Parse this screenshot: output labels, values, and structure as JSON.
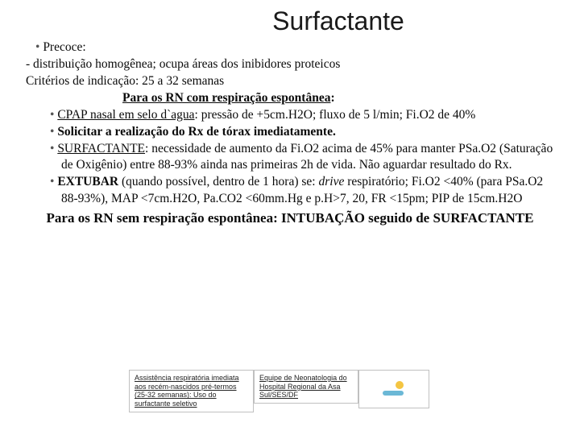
{
  "title": "Surfactante",
  "b1": "Precoce:",
  "line_dist": "   - distribuição homogênea; ocupa áreas dos inibidores proteicos",
  "line_crit": "Critérios de indicação: 25  a 32 semanas",
  "heading_com": "Para os RN com respiração espontânea",
  "b2_pre": "CPAP nasal em selo d`agua",
  "b2_post": ": pressão de +5cm.H2O; fluxo de 5 l/min; Fi.O2 de 40%",
  "b3": "Solicitar a realização do Rx de tórax imediatamente.",
  "b4_pre": "SURFACTANTE",
  "b4_post": ": necessidade de aumento da Fi.O2 acima de 45% para manter PSa.O2 (Saturação de Oxigênio) entre 88-93% ainda nas primeiras 2h de vida. Não aguardar resultado do Rx.",
  "b5_pre": "EXTUBAR",
  "b5_mid": " (quando possível, dentro de 1 hora) se: ",
  "b5_drive": "drive",
  "b5_post": " respiratório; Fi.O2 <40% (para PSa.O2 88-93%),  MAP <7cm.H2O, Pa.CO2 <60mm.Hg e p.H>7, 20, FR <15pm; PIP de 15cm.H2O",
  "heading_sem": "Para os RN sem respiração espontânea: INTUBAÇÃO seguido de SURFACTANTE",
  "footer_left": "Assistência respiratória imediata aos recém-nascidos pré-termos (25-32 semanas): Uso do surfactante seletivo",
  "footer_mid": "Equipe de Neonatologia do Hospital Regional da Asa Sul/SES/DF",
  "colors": {
    "text": "#0a0a0a",
    "bullet": "#555555",
    "border": "#c0c0c0",
    "sun": "#f4c542",
    "wave": "#6bb8d6",
    "bg": "#ffffff"
  },
  "typography": {
    "title_fontsize": 32,
    "body_fontsize": 15.5,
    "footer_fontsize": 9,
    "title_family": "Segoe UI",
    "body_family": "Georgia"
  }
}
